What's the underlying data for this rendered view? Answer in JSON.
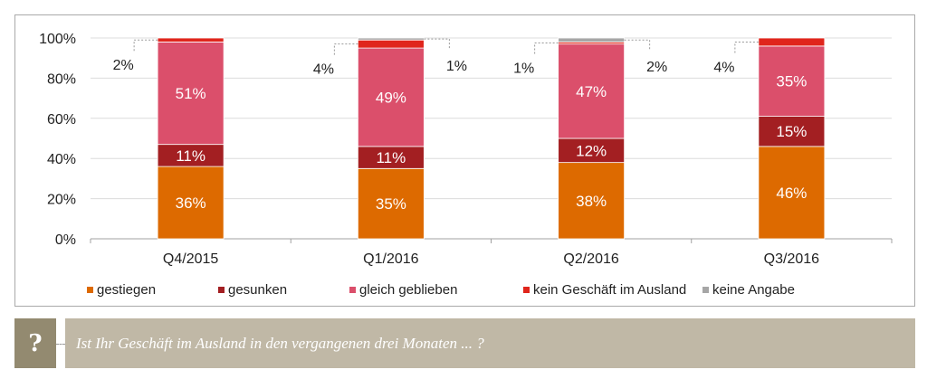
{
  "chart_data": {
    "type": "bar",
    "stacked": true,
    "title": "",
    "xlabel": "",
    "ylabel": "",
    "ylim": [
      0,
      100
    ],
    "y_ticks": [
      "0%",
      "20%",
      "40%",
      "60%",
      "80%",
      "100%"
    ],
    "y_tick_values": [
      0,
      20,
      40,
      60,
      80,
      100
    ],
    "grid": true,
    "legend_position": "bottom",
    "categories": [
      "Q4/2015",
      "Q1/2016",
      "Q2/2016",
      "Q3/2016"
    ],
    "series": [
      {
        "name": "gestiegen",
        "color": "#dd6a00",
        "values": [
          36,
          35,
          38,
          46
        ],
        "labels": [
          "36%",
          "35%",
          "38%",
          "46%"
        ]
      },
      {
        "name": "gesunken",
        "color": "#a31f22",
        "values": [
          11,
          11,
          12,
          15
        ],
        "labels": [
          "11%",
          "11%",
          "12%",
          "15%"
        ]
      },
      {
        "name": "gleich geblieben",
        "color": "#db4f6b",
        "values": [
          51,
          49,
          47,
          35
        ],
        "labels": [
          "51%",
          "49%",
          "47%",
          "35%"
        ]
      },
      {
        "name": "kein Geschäft im Ausland",
        "color": "#e0251c",
        "values": [
          2,
          4,
          1,
          4
        ],
        "labels": [
          "2%",
          "4%",
          "1%",
          "4%"
        ]
      },
      {
        "name": "keine Angabe",
        "color": "#a6a6a6",
        "values": [
          0,
          1,
          2,
          0
        ],
        "labels": [
          "",
          "1%",
          "2%",
          ""
        ]
      }
    ]
  },
  "question": {
    "icon": "?",
    "text": "Ist Ihr Geschäft im Ausland in den vergangenen drei Monaten ... ?"
  }
}
